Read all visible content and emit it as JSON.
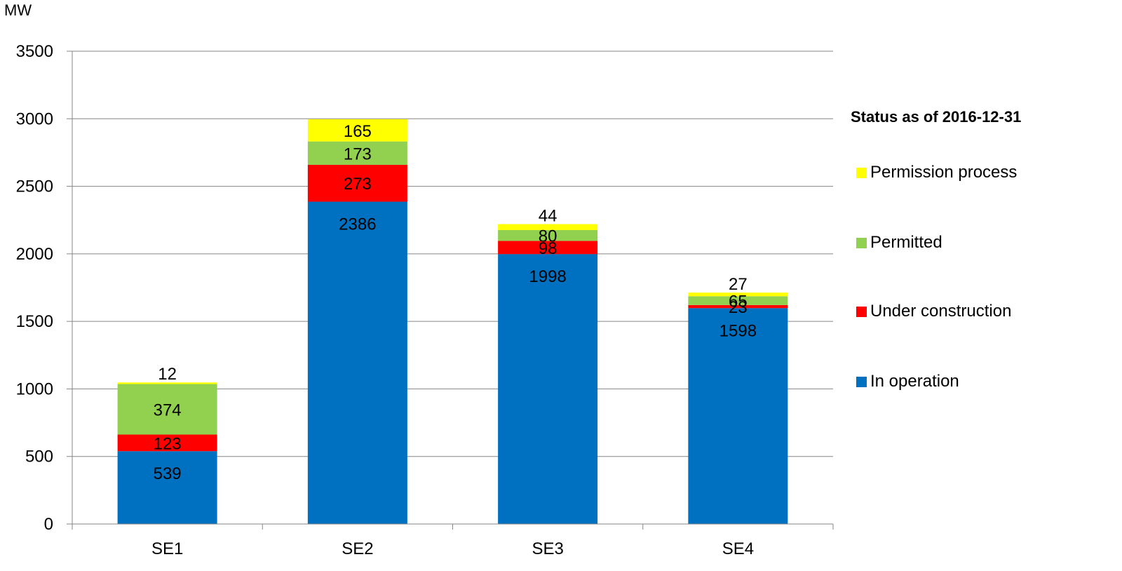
{
  "chart_data": {
    "type": "bar",
    "stacked": true,
    "title": "",
    "ylabel": "MW",
    "xlabel": "",
    "ylim": [
      0,
      3500
    ],
    "yticks": [
      0,
      500,
      1000,
      1500,
      2000,
      2500,
      3000,
      3500
    ],
    "categories": [
      "SE1",
      "SE2",
      "SE3",
      "SE4"
    ],
    "grid": true,
    "legend_title": "Status as of 2016-12-31",
    "legend_position": "right",
    "series": [
      {
        "name": "In operation",
        "color": "#0070C0",
        "values": [
          539,
          2386,
          1998,
          1598
        ]
      },
      {
        "name": "Under construction",
        "color": "#FF0000",
        "values": [
          123,
          273,
          98,
          23
        ]
      },
      {
        "name": "Permitted",
        "color": "#92D050",
        "values": [
          374,
          173,
          80,
          65
        ]
      },
      {
        "name": "Permission process",
        "color": "#FFFF00",
        "values": [
          12,
          165,
          44,
          27
        ]
      }
    ]
  }
}
